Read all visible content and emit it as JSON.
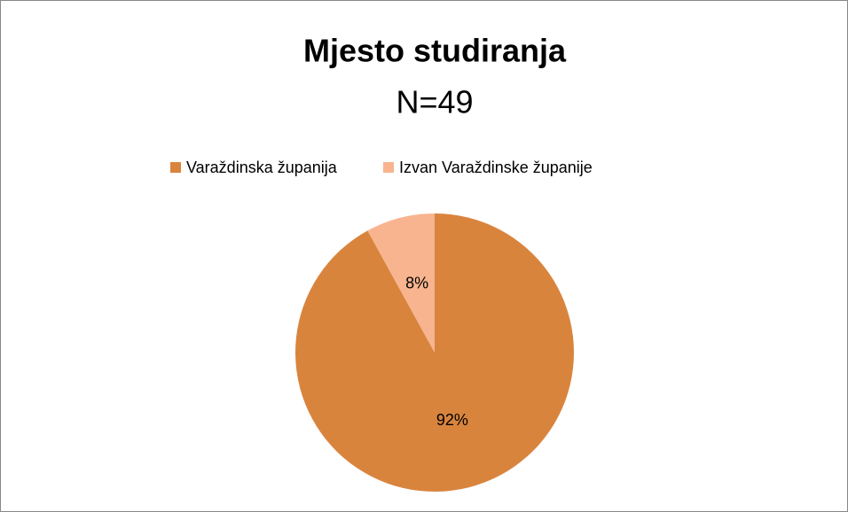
{
  "chart_data": {
    "type": "pie",
    "title": "Mjesto studiranja",
    "subtitle": "N=49",
    "categories": [
      "Varaždinska županija",
      "Izvan Varaždinske županije"
    ],
    "values": [
      92,
      8
    ],
    "value_labels": [
      "92%",
      "8%"
    ],
    "colors": [
      "#d9843d",
      "#f8b48f"
    ],
    "legend": "top"
  }
}
